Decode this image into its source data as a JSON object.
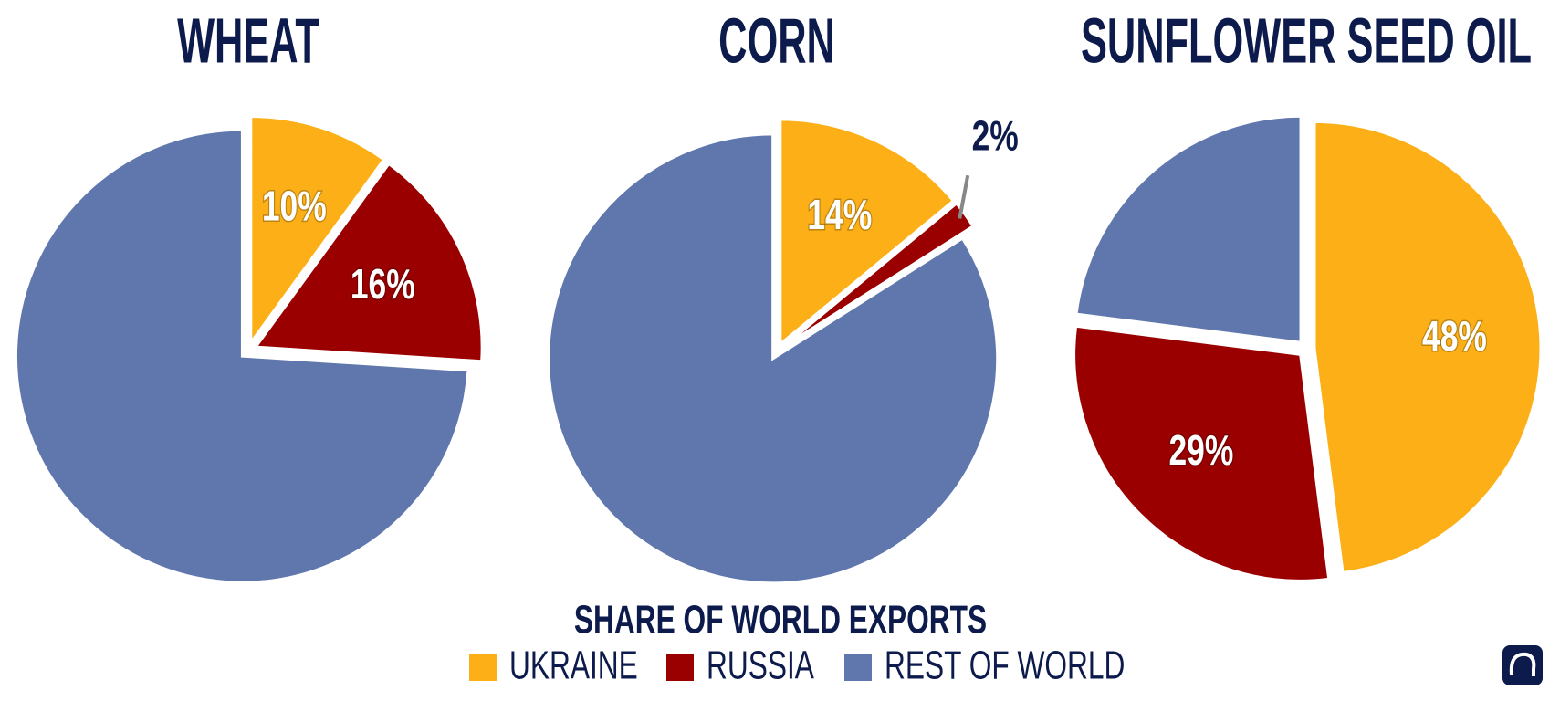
{
  "chart_data": [
    {
      "type": "pie",
      "title": "WHEAT",
      "categories": [
        "UKRAINE",
        "RUSSIA",
        "REST OF WORLD"
      ],
      "colors": [
        "#fcaf17",
        "#9b0000",
        "#6077ad"
      ],
      "values": [
        10,
        16,
        74
      ],
      "value_labels": [
        "10%",
        "16%",
        null
      ]
    },
    {
      "type": "pie",
      "title": "CORN",
      "categories": [
        "UKRAINE",
        "RUSSIA",
        "REST OF WORLD"
      ],
      "colors": [
        "#fcaf17",
        "#9b0000",
        "#6077ad"
      ],
      "values": [
        14,
        2,
        84
      ],
      "value_labels": [
        "14%",
        "2%",
        null
      ]
    },
    {
      "type": "pie",
      "title": "SUNFLOWER SEED OIL",
      "categories": [
        "UKRAINE",
        "RUSSIA",
        "REST OF WORLD"
      ],
      "colors": [
        "#fcaf17",
        "#9b0000",
        "#6077ad"
      ],
      "values": [
        48,
        29,
        23
      ],
      "value_labels": [
        "48%",
        "29%",
        null
      ]
    }
  ],
  "legend_title": "SHARE OF WORLD EXPORTS"
}
